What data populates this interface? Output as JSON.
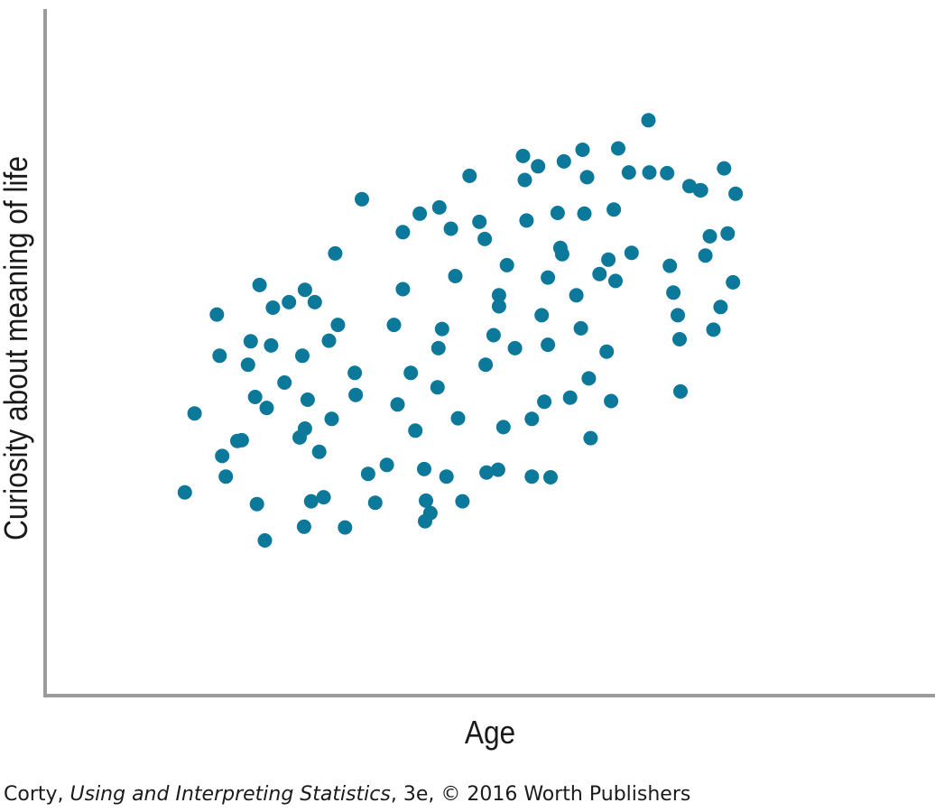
{
  "chart_data": {
    "type": "scatter",
    "xlabel": "Age",
    "ylabel": "Curiosity about meaning of life",
    "xlim": [
      0,
      100
    ],
    "ylim": [
      0,
      100
    ],
    "grid": false,
    "tick_labels": false,
    "marker_color": "#0c789a",
    "points": [
      [
        15.7,
        29.6
      ],
      [
        16.8,
        41.1
      ],
      [
        19.3,
        55.5
      ],
      [
        19.6,
        49.5
      ],
      [
        19.9,
        34.9
      ],
      [
        20.3,
        31.9
      ],
      [
        21.6,
        37.1
      ],
      [
        22.1,
        37.2
      ],
      [
        23.1,
        51.6
      ],
      [
        22.8,
        48.2
      ],
      [
        23.6,
        43.5
      ],
      [
        23.8,
        27.9
      ],
      [
        24.1,
        59.8
      ],
      [
        24.7,
        22.6
      ],
      [
        24.9,
        41.9
      ],
      [
        25.4,
        51.0
      ],
      [
        25.6,
        56.5
      ],
      [
        26.9,
        45.6
      ],
      [
        27.4,
        57.3
      ],
      [
        28.6,
        37.6
      ],
      [
        28.9,
        49.5
      ],
      [
        29.2,
        38.9
      ],
      [
        29.1,
        24.6
      ],
      [
        29.2,
        59.1
      ],
      [
        29.5,
        43.1
      ],
      [
        29.9,
        28.3
      ],
      [
        30.3,
        57.3
      ],
      [
        30.8,
        35.5
      ],
      [
        31.3,
        28.9
      ],
      [
        31.9,
        51.7
      ],
      [
        32.2,
        40.3
      ],
      [
        32.6,
        64.4
      ],
      [
        32.9,
        54.0
      ],
      [
        33.7,
        24.5
      ],
      [
        34.8,
        47.0
      ],
      [
        34.9,
        43.8
      ],
      [
        35.6,
        72.3
      ],
      [
        36.3,
        32.3
      ],
      [
        37.1,
        28.1
      ],
      [
        38.4,
        33.6
      ],
      [
        39.2,
        54.0
      ],
      [
        39.6,
        42.4
      ],
      [
        40.2,
        67.5
      ],
      [
        40.2,
        59.2
      ],
      [
        41.1,
        47.0
      ],
      [
        41.6,
        38.6
      ],
      [
        42.1,
        70.2
      ],
      [
        42.8,
        28.4
      ],
      [
        42.6,
        33.0
      ],
      [
        42.7,
        25.4
      ],
      [
        43.3,
        26.6
      ],
      [
        44.1,
        44.9
      ],
      [
        44.2,
        50.6
      ],
      [
        44.3,
        71.1
      ],
      [
        44.6,
        53.4
      ],
      [
        45.1,
        31.9
      ],
      [
        45.6,
        68.0
      ],
      [
        46.1,
        61.1
      ],
      [
        46.4,
        40.4
      ],
      [
        46.9,
        28.3
      ],
      [
        47.7,
        75.7
      ],
      [
        48.8,
        69.0
      ],
      [
        49.4,
        66.5
      ],
      [
        49.6,
        32.5
      ],
      [
        49.5,
        48.2
      ],
      [
        50.4,
        52.5
      ],
      [
        50.9,
        32.9
      ],
      [
        51.0,
        56.7
      ],
      [
        51.0,
        58.3
      ],
      [
        51.5,
        39.1
      ],
      [
        51.9,
        62.7
      ],
      [
        52.8,
        50.6
      ],
      [
        53.7,
        78.6
      ],
      [
        53.9,
        75.1
      ],
      [
        54.1,
        69.2
      ],
      [
        54.7,
        40.3
      ],
      [
        54.7,
        31.9
      ],
      [
        55.4,
        77.1
      ],
      [
        55.8,
        55.4
      ],
      [
        56.1,
        42.8
      ],
      [
        56.5,
        60.9
      ],
      [
        56.5,
        51.1
      ],
      [
        56.8,
        31.8
      ],
      [
        57.6,
        70.3
      ],
      [
        57.9,
        65.2
      ],
      [
        58.1,
        64.3
      ],
      [
        58.3,
        77.8
      ],
      [
        59.0,
        43.4
      ],
      [
        59.7,
        58.3
      ],
      [
        60.2,
        53.5
      ],
      [
        60.4,
        79.5
      ],
      [
        60.6,
        70.2
      ],
      [
        60.9,
        75.5
      ],
      [
        61.1,
        46.2
      ],
      [
        61.3,
        37.5
      ],
      [
        62.3,
        61.4
      ],
      [
        63.1,
        50.1
      ],
      [
        63.3,
        63.5
      ],
      [
        63.6,
        42.9
      ],
      [
        63.9,
        70.8
      ],
      [
        64.1,
        60.4
      ],
      [
        64.4,
        79.7
      ],
      [
        65.6,
        76.2
      ],
      [
        65.9,
        64.5
      ],
      [
        67.8,
        83.8
      ],
      [
        67.9,
        76.2
      ],
      [
        69.9,
        76.1
      ],
      [
        70.2,
        62.6
      ],
      [
        70.6,
        58.7
      ],
      [
        71.1,
        55.4
      ],
      [
        71.3,
        51.9
      ],
      [
        71.4,
        44.3
      ],
      [
        72.4,
        74.2
      ],
      [
        73.6,
        73.6
      ],
      [
        73.7,
        73.6
      ],
      [
        74.2,
        64.1
      ],
      [
        74.7,
        66.9
      ],
      [
        75.1,
        53.3
      ],
      [
        75.9,
        56.6
      ],
      [
        76.3,
        76.8
      ],
      [
        76.7,
        67.3
      ],
      [
        77.3,
        60.2
      ],
      [
        77.6,
        73.1
      ]
    ]
  },
  "credit": {
    "author": "Corty, ",
    "book": "Using and Interpreting Statistics",
    "edition_publisher": ", 3e, © 2016 Worth Publishers"
  }
}
